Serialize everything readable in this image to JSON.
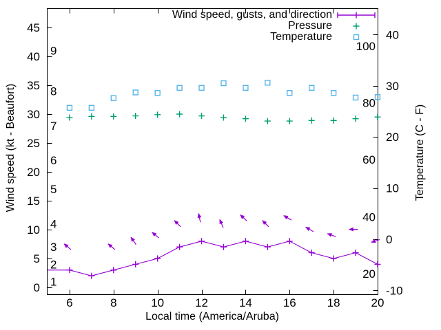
{
  "colors": {
    "wind": "#9400d3",
    "pressure": "#009e73",
    "temperature": "#56b4e9",
    "axis": "#000000",
    "background": "#ffffff"
  },
  "chart_data": {
    "type": "line",
    "title": "",
    "xlabel": "Local time (America/Aruba)",
    "ylabel_left": "Wind speed (kt - Beaufort)",
    "ylabel_right": "Temperature (C - F)",
    "grid": false,
    "x_axis": {
      "range": [
        5,
        20
      ],
      "ticks": [
        6,
        8,
        10,
        12,
        14,
        16,
        18,
        20
      ]
    },
    "y_left_axis": {
      "unit": "kt",
      "ticks": [
        0,
        5,
        10,
        15,
        20,
        25,
        30,
        35,
        40,
        45
      ]
    },
    "y_left_inner_beaufort": [
      {
        "label": "1",
        "kt": 1
      },
      {
        "label": "2",
        "kt": 4
      },
      {
        "label": "3",
        "kt": 7
      },
      {
        "label": "4",
        "kt": 11
      },
      {
        "label": "5",
        "kt": 17
      },
      {
        "label": "6",
        "kt": 22
      },
      {
        "label": "7",
        "kt": 28
      },
      {
        "label": "8",
        "kt": 34
      },
      {
        "label": "9",
        "kt": 41
      }
    ],
    "y_right_axis": {
      "unit": "C",
      "ticks": [
        -10,
        0,
        10,
        20,
        30,
        40
      ]
    },
    "y_right_inner_fahrenheit": [
      {
        "label": "20",
        "c": -6.7
      },
      {
        "label": "40",
        "c": 4.4
      },
      {
        "label": "60",
        "c": 15.6
      },
      {
        "label": "80",
        "c": 26.7
      },
      {
        "label": "100",
        "c": 37.8
      }
    ],
    "series": [
      {
        "name": "Wind speed, gusts, and direction",
        "style": "line-with-plus-markers-and-direction-arrows",
        "color": "#9400d3",
        "axis": "left_kt",
        "hours": [
          5,
          6,
          7,
          8,
          9,
          10,
          11,
          12,
          13,
          14,
          15,
          16,
          17,
          18,
          19,
          20
        ],
        "values": [
          3,
          3,
          2,
          3,
          4,
          5,
          7,
          8,
          7,
          8,
          7,
          8,
          6,
          5,
          6,
          4
        ]
      },
      {
        "name": "Pressure",
        "style": "plus-points",
        "color": "#009e73",
        "axis": "left_numeric_inHg",
        "hours": [
          6,
          7,
          8,
          9,
          10,
          11,
          12,
          13,
          14,
          15,
          16,
          17,
          18,
          19,
          20
        ],
        "values": [
          29.4,
          29.6,
          29.6,
          29.7,
          29.9,
          30.0,
          29.7,
          29.4,
          29.2,
          28.8,
          28.8,
          28.9,
          28.9,
          29.2,
          29.5
        ]
      },
      {
        "name": "Temperature",
        "style": "open-square-points",
        "color": "#56b4e9",
        "axis": "right_c",
        "hours": [
          6,
          7,
          8,
          9,
          10,
          11,
          12,
          13,
          14,
          15,
          16,
          17,
          18,
          19,
          20
        ],
        "values": [
          25.7,
          25.7,
          27.6,
          28.7,
          28.6,
          29.6,
          29.6,
          30.5,
          29.6,
          30.6,
          28.6,
          29.6,
          28.6,
          27.7,
          27.8
        ]
      }
    ],
    "wind_direction_arrows": {
      "hours": [
        6,
        8,
        9,
        10,
        11,
        12,
        13,
        14,
        15,
        16,
        17,
        18,
        19,
        20
      ],
      "angles_deg_ccw_from_east": [
        140,
        140,
        125,
        140,
        135,
        101,
        113,
        137,
        135,
        150,
        150,
        160,
        180,
        198
      ],
      "note": "arrows drawn above the wind-speed line"
    },
    "legend": {
      "position": "top-right",
      "entries": [
        {
          "label": "Wind speed, gusts, and direction",
          "marker": "errorbar-line-plus"
        },
        {
          "label": "Pressure",
          "marker": "plus"
        },
        {
          "label": "Temperature",
          "marker": "open-square"
        }
      ]
    }
  }
}
